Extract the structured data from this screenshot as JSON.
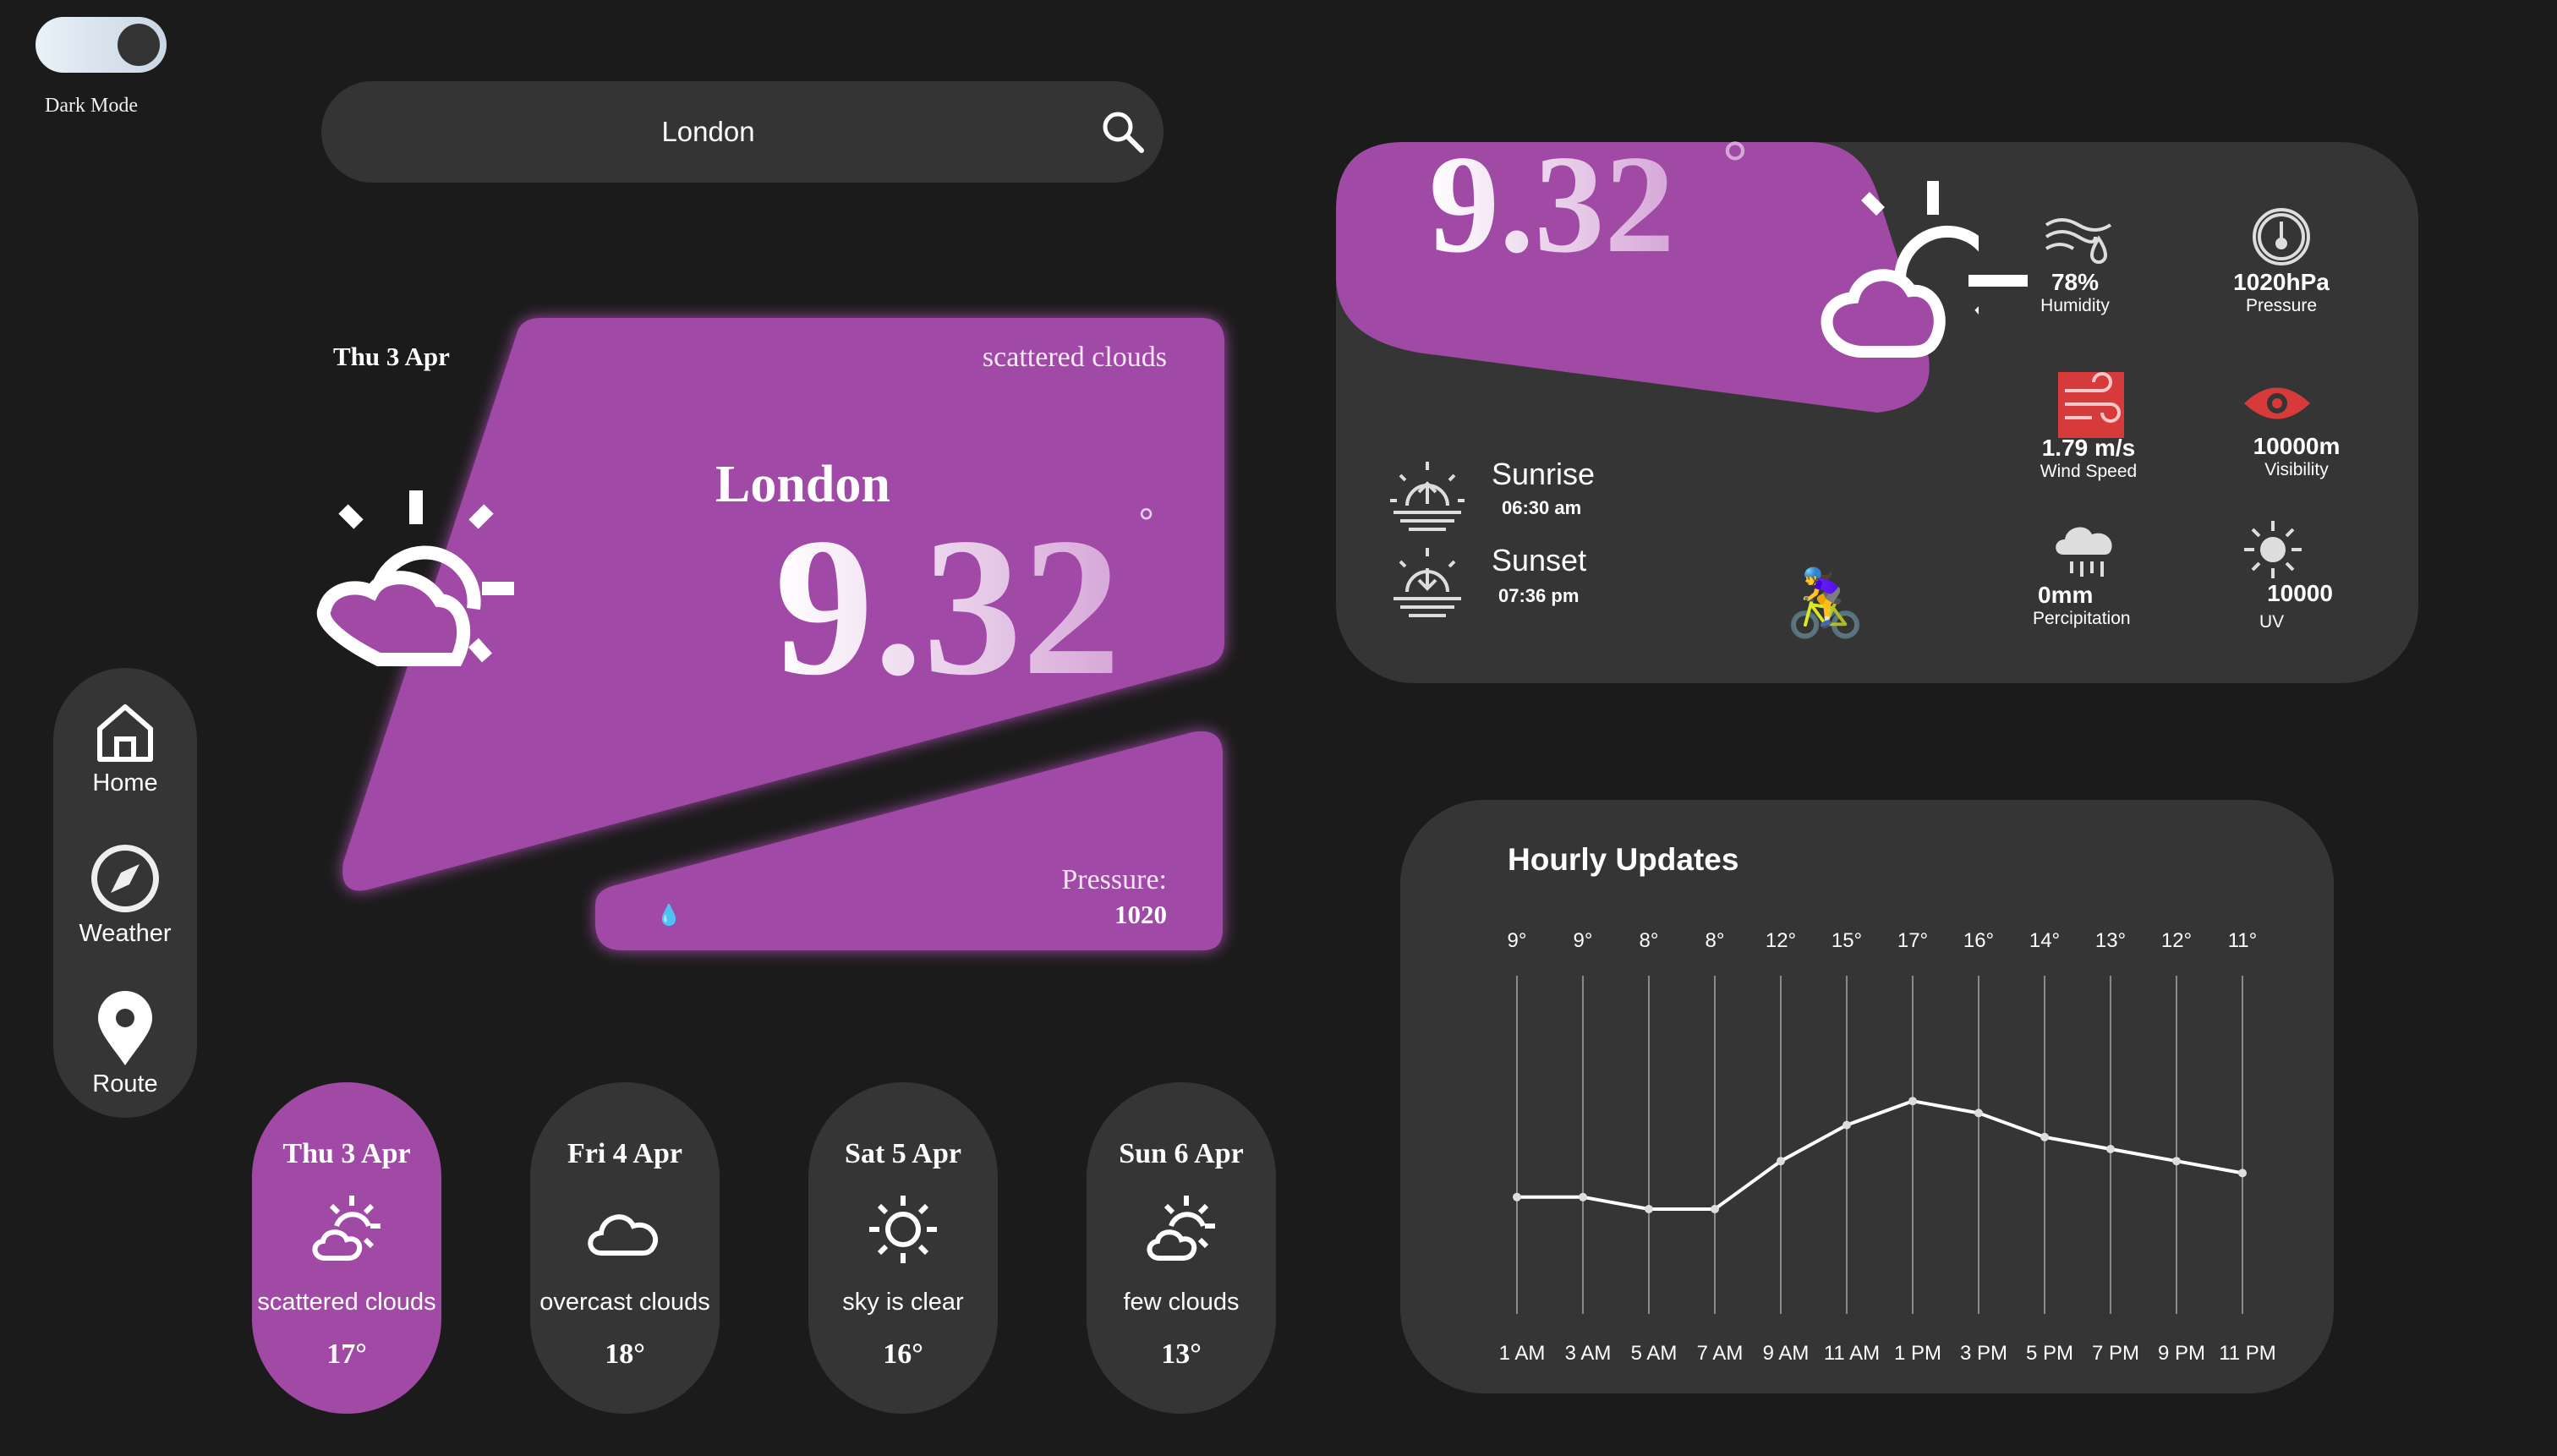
{
  "toggle": {
    "label": "Dark Mode",
    "state": "on"
  },
  "search": {
    "value": "London",
    "icon": "search-icon"
  },
  "nav": [
    {
      "label": "Home",
      "icon": "home-icon"
    },
    {
      "label": "Weather",
      "icon": "compass-icon"
    },
    {
      "label": "Route",
      "icon": "map-pin-icon"
    }
  ],
  "current": {
    "date": "Thu 3 Apr",
    "description": "scattered clouds",
    "city": "London",
    "temp": "9.32",
    "degree": "°",
    "pressure_label": "Pressure:",
    "pressure_value": "1020",
    "icon": "partly-cloudy-icon",
    "accent": "#a04aa6"
  },
  "forecast": [
    {
      "date": "Thu 3 Apr",
      "desc": "scattered clouds",
      "temp": "17°",
      "icon": "partly-cloudy-icon",
      "active": true
    },
    {
      "date": "Fri 4 Apr",
      "desc": "overcast clouds",
      "temp": "18°",
      "icon": "cloud-icon",
      "active": false
    },
    {
      "date": "Sat 5 Apr",
      "desc": "sky is clear",
      "temp": "16°",
      "icon": "sun-icon",
      "active": false
    },
    {
      "date": "Sun 6 Apr",
      "desc": "few clouds",
      "temp": "13°",
      "icon": "partly-cloudy-icon",
      "active": false
    }
  ],
  "details": {
    "temp": "9.32",
    "degree": "°",
    "sunrise_label": "Sunrise",
    "sunrise_time": "06:30 am",
    "sunset_label": "Sunset",
    "sunset_time": "07:36 pm",
    "humidity_value": "78%",
    "humidity_label": "Humidity",
    "pressure_value": "1020hPa",
    "pressure_label": "Pressure",
    "wind_value": "1.79 m/s",
    "wind_label": "Wind Speed",
    "visibility_value": "10000m",
    "visibility_label": "Visibility",
    "precip_value": "0mm",
    "precip_label": "Percipitation",
    "uv_value": "10000",
    "uv_label": "UV",
    "alert_color": "#d63a3a",
    "cyclist_emoji": "🚴‍♀️"
  },
  "hourly": {
    "title": "Hourly Updates",
    "temps": [
      "9°",
      "9°",
      "8°",
      "8°",
      "12°",
      "15°",
      "17°",
      "16°",
      "14°",
      "13°",
      "12°",
      "11°"
    ],
    "times": [
      "1 AM",
      "3 AM",
      "5 AM",
      "7 AM",
      "9 AM",
      "11 AM",
      "1 PM",
      "3 PM",
      "5 PM",
      "7 PM",
      "9 PM",
      "11 PM"
    ]
  },
  "chart_data": {
    "type": "line",
    "title": "Hourly Updates",
    "categories": [
      "1 AM",
      "3 AM",
      "5 AM",
      "7 AM",
      "9 AM",
      "11 AM",
      "1 PM",
      "3 PM",
      "5 PM",
      "7 PM",
      "9 PM",
      "11 PM"
    ],
    "values": [
      9,
      9,
      8,
      8,
      12,
      15,
      17,
      16,
      14,
      13,
      12,
      11
    ],
    "grid": "vertical",
    "xlabel": "",
    "ylabel": ""
  }
}
